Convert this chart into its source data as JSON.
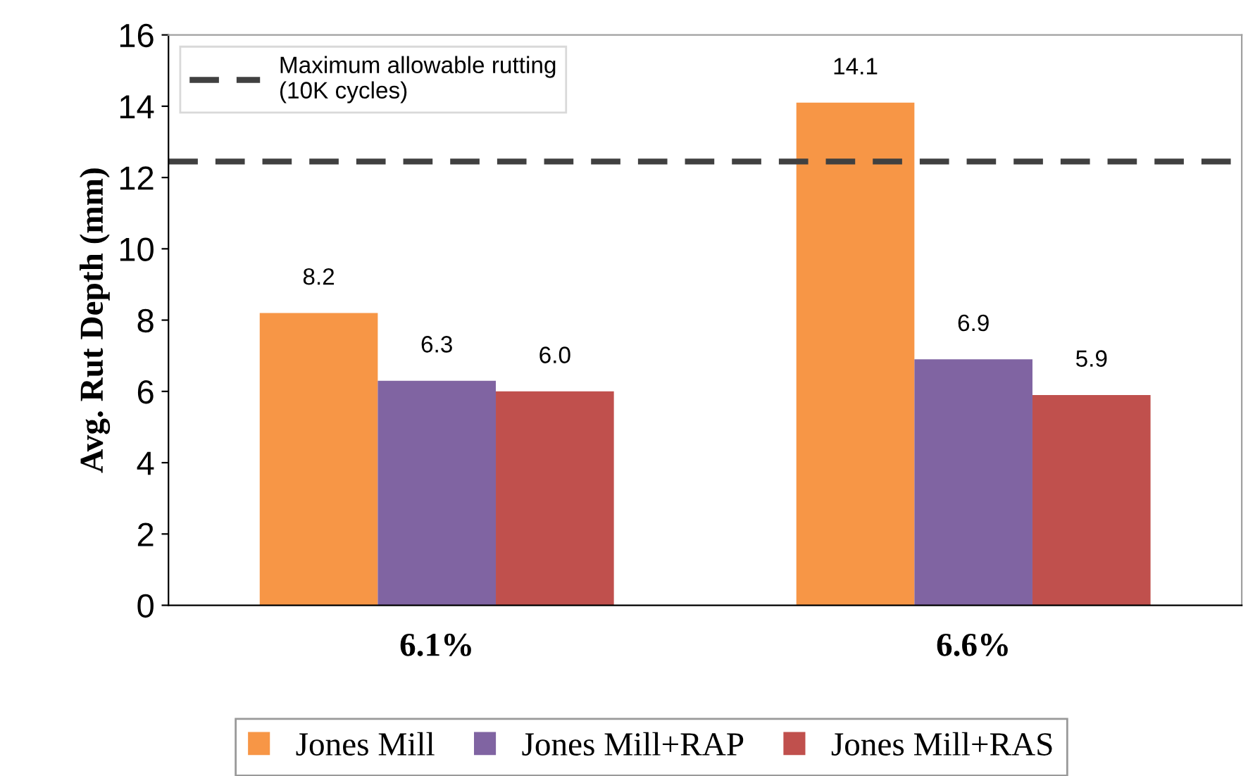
{
  "chart_data": {
    "type": "bar",
    "ylabel": "Avg. Rut Depth (mm)",
    "categories": [
      "6.1%",
      "6.6%"
    ],
    "series": [
      {
        "name": "Jones Mill",
        "color": "#f79646",
        "values": [
          8.2,
          14.1
        ]
      },
      {
        "name": "Jones Mill+RAP",
        "color": "#8064a2",
        "values": [
          6.3,
          6.9
        ]
      },
      {
        "name": "Jones Mill+RAS",
        "color": "#c0504d",
        "values": [
          6.0,
          5.9
        ]
      }
    ],
    "value_labels": [
      [
        "8.2",
        "14.1"
      ],
      [
        "6.3",
        "6.9"
      ],
      [
        "6.0",
        "5.9"
      ]
    ],
    "ylim": [
      0,
      16
    ],
    "yticks": [
      0,
      2,
      4,
      6,
      8,
      10,
      12,
      14,
      16
    ],
    "ref_lines": [
      {
        "axis": "y",
        "value": 12.45,
        "label": "Maximum allowable rutting\n(10K cycles)",
        "color": "#404040",
        "line_style": "dashed"
      }
    ],
    "grid": false,
    "legend": "bottom"
  }
}
